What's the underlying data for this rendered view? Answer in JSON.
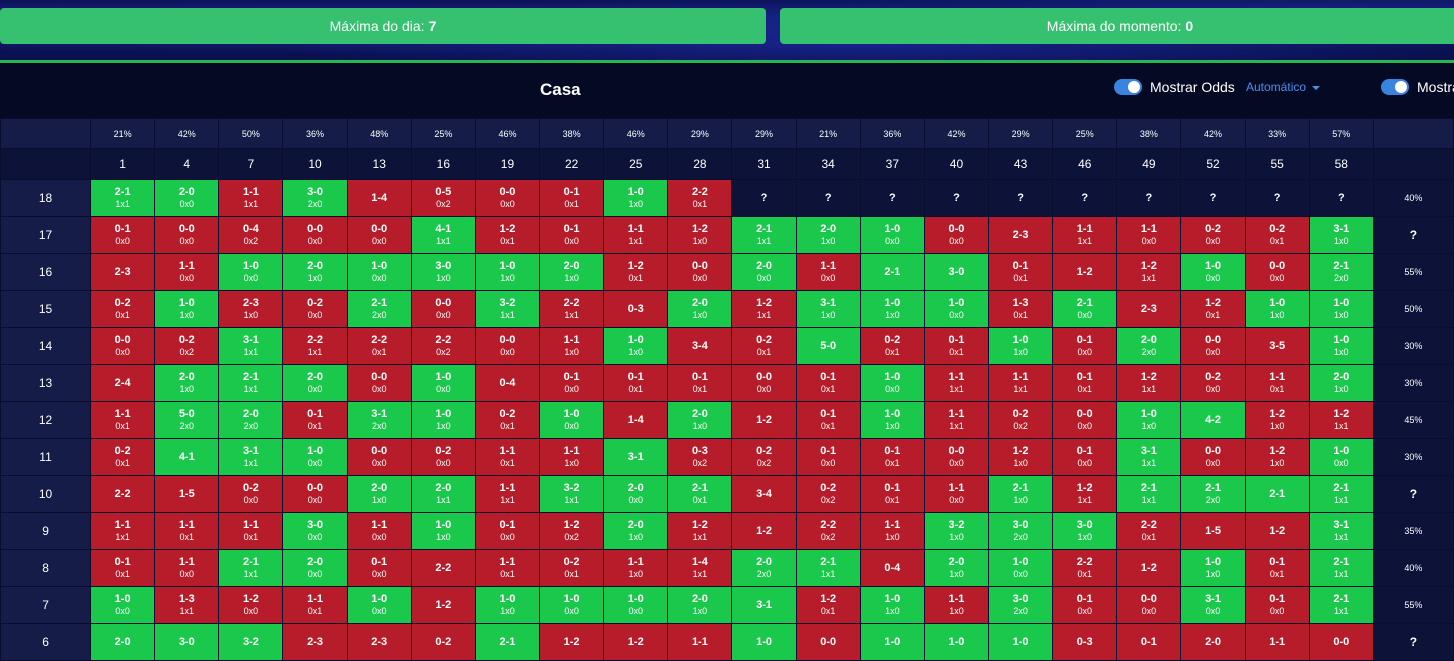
{
  "stats": {
    "day_max_label": "Máxima do dia:",
    "day_max_value": "7",
    "moment_max_label": "Máxima do momento:",
    "moment_max_value": "0"
  },
  "header": {
    "title": "Casa",
    "toggle_label": "Mostrar Odds",
    "toggle_label_cut": "Mostrar",
    "mode": "Automático"
  },
  "colors": {
    "green": "#1ac84c",
    "red": "#b71c2a",
    "stat_green": "#35c16f",
    "accent": "#3a84e0"
  },
  "percents": [
    "21%",
    "42%",
    "50%",
    "36%",
    "48%",
    "25%",
    "46%",
    "38%",
    "46%",
    "29%",
    "29%",
    "21%",
    "36%",
    "42%",
    "29%",
    "25%",
    "38%",
    "42%",
    "33%",
    "57%"
  ],
  "minutes": [
    "1",
    "4",
    "7",
    "10",
    "13",
    "16",
    "19",
    "22",
    "25",
    "28",
    "31",
    "34",
    "37",
    "40",
    "43",
    "46",
    "49",
    "52",
    "55",
    "58"
  ],
  "rows": [
    {
      "hour": "18",
      "rate": "40%",
      "cells": [
        [
          "2-1",
          "1x1",
          "g"
        ],
        [
          "2-0",
          "0x0",
          "g"
        ],
        [
          "1-1",
          "1x1",
          "r"
        ],
        [
          "3-0",
          "2x0",
          "g"
        ],
        [
          "1-4",
          "",
          "r"
        ],
        [
          "0-5",
          "0x2",
          "r"
        ],
        [
          "0-0",
          "0x0",
          "r"
        ],
        [
          "0-1",
          "0x1",
          "r"
        ],
        [
          "1-0",
          "1x0",
          "g"
        ],
        [
          "2-2",
          "0x1",
          "r"
        ],
        [
          "?",
          "",
          "u"
        ],
        [
          "?",
          "",
          "u"
        ],
        [
          "?",
          "",
          "u"
        ],
        [
          "?",
          "",
          "u"
        ],
        [
          "?",
          "",
          "u"
        ],
        [
          "?",
          "",
          "u"
        ],
        [
          "?",
          "",
          "u"
        ],
        [
          "?",
          "",
          "u"
        ],
        [
          "?",
          "",
          "u"
        ],
        [
          "?",
          "",
          "u"
        ]
      ]
    },
    {
      "hour": "17",
      "rate": "?",
      "cells": [
        [
          "0-1",
          "0x0",
          "r"
        ],
        [
          "0-0",
          "0x0",
          "r"
        ],
        [
          "0-4",
          "0x2",
          "r"
        ],
        [
          "0-0",
          "0x0",
          "r"
        ],
        [
          "0-0",
          "0x0",
          "r"
        ],
        [
          "4-1",
          "1x1",
          "g"
        ],
        [
          "1-2",
          "0x1",
          "r"
        ],
        [
          "0-1",
          "0x0",
          "r"
        ],
        [
          "1-1",
          "1x1",
          "r"
        ],
        [
          "1-2",
          "1x0",
          "r"
        ],
        [
          "2-1",
          "1x1",
          "g"
        ],
        [
          "2-0",
          "1x0",
          "g"
        ],
        [
          "1-0",
          "0x0",
          "g"
        ],
        [
          "0-0",
          "0x0",
          "r"
        ],
        [
          "2-3",
          "",
          "r"
        ],
        [
          "1-1",
          "1x1",
          "r"
        ],
        [
          "1-1",
          "0x0",
          "r"
        ],
        [
          "0-2",
          "0x0",
          "r"
        ],
        [
          "0-2",
          "0x1",
          "r"
        ],
        [
          "3-1",
          "1x0",
          "g"
        ]
      ]
    },
    {
      "hour": "16",
      "rate": "55%",
      "cells": [
        [
          "2-3",
          "",
          "r"
        ],
        [
          "1-1",
          "0x0",
          "r"
        ],
        [
          "1-0",
          "0x0",
          "g"
        ],
        [
          "2-0",
          "1x0",
          "g"
        ],
        [
          "1-0",
          "0x0",
          "g"
        ],
        [
          "3-0",
          "1x0",
          "g"
        ],
        [
          "1-0",
          "1x0",
          "g"
        ],
        [
          "2-0",
          "1x0",
          "g"
        ],
        [
          "1-2",
          "0x1",
          "r"
        ],
        [
          "0-0",
          "0x0",
          "r"
        ],
        [
          "2-0",
          "0x0",
          "g"
        ],
        [
          "1-1",
          "0x0",
          "r"
        ],
        [
          "2-1",
          "",
          "g"
        ],
        [
          "3-0",
          "",
          "g"
        ],
        [
          "0-1",
          "0x1",
          "r"
        ],
        [
          "1-2",
          "",
          "r"
        ],
        [
          "1-2",
          "1x1",
          "r"
        ],
        [
          "1-0",
          "0x0",
          "g"
        ],
        [
          "0-0",
          "0x0",
          "r"
        ],
        [
          "2-1",
          "2x0",
          "g"
        ]
      ]
    },
    {
      "hour": "15",
      "rate": "50%",
      "cells": [
        [
          "0-2",
          "0x1",
          "r"
        ],
        [
          "1-0",
          "1x0",
          "g"
        ],
        [
          "2-3",
          "1x0",
          "r"
        ],
        [
          "0-2",
          "0x0",
          "r"
        ],
        [
          "2-1",
          "2x0",
          "g"
        ],
        [
          "0-0",
          "0x0",
          "r"
        ],
        [
          "3-2",
          "1x1",
          "g"
        ],
        [
          "2-2",
          "1x1",
          "r"
        ],
        [
          "0-3",
          "",
          "r"
        ],
        [
          "2-0",
          "1x0",
          "g"
        ],
        [
          "1-2",
          "1x1",
          "r"
        ],
        [
          "3-1",
          "1x0",
          "g"
        ],
        [
          "1-0",
          "1x0",
          "g"
        ],
        [
          "1-0",
          "0x0",
          "g"
        ],
        [
          "1-3",
          "0x1",
          "r"
        ],
        [
          "2-1",
          "0x0",
          "g"
        ],
        [
          "2-3",
          "",
          "r"
        ],
        [
          "1-2",
          "0x1",
          "r"
        ],
        [
          "1-0",
          "1x0",
          "g"
        ],
        [
          "1-0",
          "1x0",
          "g"
        ]
      ]
    },
    {
      "hour": "14",
      "rate": "30%",
      "cells": [
        [
          "0-0",
          "0x0",
          "r"
        ],
        [
          "0-2",
          "0x2",
          "r"
        ],
        [
          "3-1",
          "1x1",
          "g"
        ],
        [
          "2-2",
          "1x1",
          "r"
        ],
        [
          "2-2",
          "0x1",
          "r"
        ],
        [
          "2-2",
          "0x2",
          "r"
        ],
        [
          "0-0",
          "0x0",
          "r"
        ],
        [
          "1-1",
          "1x0",
          "r"
        ],
        [
          "1-0",
          "1x0",
          "g"
        ],
        [
          "3-4",
          "",
          "r"
        ],
        [
          "0-2",
          "0x1",
          "r"
        ],
        [
          "5-0",
          "",
          "g"
        ],
        [
          "0-2",
          "0x1",
          "r"
        ],
        [
          "0-1",
          "0x1",
          "r"
        ],
        [
          "1-0",
          "1x0",
          "g"
        ],
        [
          "0-1",
          "0x0",
          "r"
        ],
        [
          "2-0",
          "2x0",
          "g"
        ],
        [
          "0-0",
          "0x0",
          "r"
        ],
        [
          "3-5",
          "",
          "r"
        ],
        [
          "1-0",
          "1x0",
          "g"
        ]
      ]
    },
    {
      "hour": "13",
      "rate": "30%",
      "cells": [
        [
          "2-4",
          "",
          "r"
        ],
        [
          "2-0",
          "1x0",
          "g"
        ],
        [
          "2-1",
          "1x1",
          "g"
        ],
        [
          "2-0",
          "0x0",
          "g"
        ],
        [
          "0-0",
          "0x0",
          "r"
        ],
        [
          "1-0",
          "0x0",
          "g"
        ],
        [
          "0-4",
          "",
          "r"
        ],
        [
          "0-1",
          "0x0",
          "r"
        ],
        [
          "0-1",
          "0x1",
          "r"
        ],
        [
          "0-1",
          "0x1",
          "r"
        ],
        [
          "0-0",
          "0x0",
          "r"
        ],
        [
          "0-1",
          "0x1",
          "r"
        ],
        [
          "1-0",
          "0x0",
          "g"
        ],
        [
          "1-1",
          "1x1",
          "r"
        ],
        [
          "1-1",
          "1x1",
          "r"
        ],
        [
          "0-1",
          "0x1",
          "r"
        ],
        [
          "1-2",
          "1x1",
          "r"
        ],
        [
          "0-2",
          "0x0",
          "r"
        ],
        [
          "1-1",
          "0x1",
          "r"
        ],
        [
          "2-0",
          "1x0",
          "g"
        ]
      ]
    },
    {
      "hour": "12",
      "rate": "45%",
      "cells": [
        [
          "1-1",
          "0x1",
          "r"
        ],
        [
          "5-0",
          "2x0",
          "g"
        ],
        [
          "2-0",
          "2x0",
          "g"
        ],
        [
          "0-1",
          "0x1",
          "r"
        ],
        [
          "3-1",
          "2x0",
          "g"
        ],
        [
          "1-0",
          "1x0",
          "g"
        ],
        [
          "0-2",
          "0x1",
          "r"
        ],
        [
          "1-0",
          "0x0",
          "g"
        ],
        [
          "1-4",
          "",
          "r"
        ],
        [
          "2-0",
          "1x0",
          "g"
        ],
        [
          "1-2",
          "",
          "r"
        ],
        [
          "0-1",
          "0x1",
          "r"
        ],
        [
          "1-0",
          "1x0",
          "g"
        ],
        [
          "1-1",
          "1x1",
          "r"
        ],
        [
          "0-2",
          "0x2",
          "r"
        ],
        [
          "0-0",
          "0x0",
          "r"
        ],
        [
          "1-0",
          "1x0",
          "g"
        ],
        [
          "4-2",
          "",
          "g"
        ],
        [
          "1-2",
          "1x0",
          "r"
        ],
        [
          "1-2",
          "1x1",
          "r"
        ]
      ]
    },
    {
      "hour": "11",
      "rate": "30%",
      "cells": [
        [
          "0-2",
          "0x1",
          "r"
        ],
        [
          "4-1",
          "",
          "g"
        ],
        [
          "3-1",
          "1x1",
          "g"
        ],
        [
          "1-0",
          "0x0",
          "g"
        ],
        [
          "0-0",
          "0x0",
          "r"
        ],
        [
          "0-2",
          "0x0",
          "r"
        ],
        [
          "1-1",
          "0x1",
          "r"
        ],
        [
          "1-1",
          "1x0",
          "r"
        ],
        [
          "3-1",
          "",
          "g"
        ],
        [
          "0-3",
          "0x2",
          "r"
        ],
        [
          "0-2",
          "0x2",
          "r"
        ],
        [
          "0-1",
          "0x0",
          "r"
        ],
        [
          "0-1",
          "0x1",
          "r"
        ],
        [
          "0-0",
          "0x0",
          "r"
        ],
        [
          "1-2",
          "1x0",
          "r"
        ],
        [
          "0-1",
          "0x0",
          "r"
        ],
        [
          "3-1",
          "1x1",
          "g"
        ],
        [
          "0-0",
          "0x0",
          "r"
        ],
        [
          "1-2",
          "1x0",
          "r"
        ],
        [
          "1-0",
          "0x0",
          "g"
        ]
      ]
    },
    {
      "hour": "10",
      "rate": "?",
      "cells": [
        [
          "2-2",
          "",
          "r"
        ],
        [
          "1-5",
          "",
          "r"
        ],
        [
          "0-2",
          "0x0",
          "r"
        ],
        [
          "0-0",
          "0x0",
          "r"
        ],
        [
          "2-0",
          "1x0",
          "g"
        ],
        [
          "2-0",
          "1x1",
          "g"
        ],
        [
          "1-1",
          "1x1",
          "r"
        ],
        [
          "3-2",
          "1x1",
          "g"
        ],
        [
          "2-0",
          "0x0",
          "g"
        ],
        [
          "2-1",
          "0x1",
          "g"
        ],
        [
          "3-4",
          "",
          "r"
        ],
        [
          "0-2",
          "0x2",
          "r"
        ],
        [
          "0-1",
          "0x1",
          "r"
        ],
        [
          "1-1",
          "0x0",
          "r"
        ],
        [
          "2-1",
          "1x0",
          "g"
        ],
        [
          "1-2",
          "1x1",
          "r"
        ],
        [
          "2-1",
          "1x1",
          "g"
        ],
        [
          "2-1",
          "2x0",
          "g"
        ],
        [
          "2-1",
          "",
          "g"
        ],
        [
          "2-1",
          "1x1",
          "g"
        ]
      ]
    },
    {
      "hour": "9",
      "rate": "35%",
      "cells": [
        [
          "1-1",
          "1x1",
          "r"
        ],
        [
          "1-1",
          "0x1",
          "r"
        ],
        [
          "1-1",
          "0x1",
          "r"
        ],
        [
          "3-0",
          "0x0",
          "g"
        ],
        [
          "1-1",
          "0x0",
          "r"
        ],
        [
          "1-0",
          "1x0",
          "g"
        ],
        [
          "0-1",
          "0x0",
          "r"
        ],
        [
          "1-2",
          "0x2",
          "r"
        ],
        [
          "2-0",
          "1x0",
          "g"
        ],
        [
          "1-2",
          "1x1",
          "r"
        ],
        [
          "1-2",
          "",
          "r"
        ],
        [
          "2-2",
          "0x2",
          "r"
        ],
        [
          "1-1",
          "1x0",
          "r"
        ],
        [
          "3-2",
          "1x0",
          "g"
        ],
        [
          "3-0",
          "2x0",
          "g"
        ],
        [
          "3-0",
          "1x0",
          "g"
        ],
        [
          "2-2",
          "0x1",
          "r"
        ],
        [
          "1-5",
          "",
          "r"
        ],
        [
          "1-2",
          "",
          "r"
        ],
        [
          "3-1",
          "1x1",
          "g"
        ]
      ]
    },
    {
      "hour": "8",
      "rate": "40%",
      "cells": [
        [
          "0-1",
          "0x1",
          "r"
        ],
        [
          "1-1",
          "0x0",
          "r"
        ],
        [
          "2-1",
          "1x1",
          "g"
        ],
        [
          "2-0",
          "0x0",
          "g"
        ],
        [
          "0-1",
          "0x0",
          "r"
        ],
        [
          "2-2",
          "",
          "r"
        ],
        [
          "1-1",
          "0x1",
          "r"
        ],
        [
          "0-2",
          "0x1",
          "r"
        ],
        [
          "1-1",
          "1x0",
          "r"
        ],
        [
          "1-4",
          "1x1",
          "r"
        ],
        [
          "2-0",
          "2x0",
          "g"
        ],
        [
          "2-1",
          "1x1",
          "g"
        ],
        [
          "0-4",
          "",
          "r"
        ],
        [
          "2-0",
          "1x0",
          "g"
        ],
        [
          "1-0",
          "0x0",
          "g"
        ],
        [
          "2-2",
          "0x1",
          "r"
        ],
        [
          "1-2",
          "",
          "r"
        ],
        [
          "1-0",
          "1x0",
          "g"
        ],
        [
          "0-1",
          "0x1",
          "r"
        ],
        [
          "2-1",
          "1x1",
          "g"
        ]
      ]
    },
    {
      "hour": "7",
      "rate": "55%",
      "cells": [
        [
          "1-0",
          "0x0",
          "g"
        ],
        [
          "1-3",
          "1x1",
          "r"
        ],
        [
          "1-2",
          "0x0",
          "r"
        ],
        [
          "1-1",
          "0x1",
          "r"
        ],
        [
          "1-0",
          "0x0",
          "g"
        ],
        [
          "1-2",
          "",
          "r"
        ],
        [
          "1-0",
          "1x0",
          "g"
        ],
        [
          "1-0",
          "0x0",
          "g"
        ],
        [
          "1-0",
          "0x0",
          "g"
        ],
        [
          "2-0",
          "1x0",
          "g"
        ],
        [
          "3-1",
          "",
          "g"
        ],
        [
          "1-2",
          "0x1",
          "r"
        ],
        [
          "1-0",
          "1x0",
          "g"
        ],
        [
          "1-1",
          "1x0",
          "r"
        ],
        [
          "3-0",
          "2x0",
          "g"
        ],
        [
          "0-1",
          "0x0",
          "r"
        ],
        [
          "0-0",
          "0x0",
          "r"
        ],
        [
          "3-1",
          "0x0",
          "g"
        ],
        [
          "0-1",
          "0x0",
          "r"
        ],
        [
          "2-1",
          "1x1",
          "g"
        ]
      ]
    },
    {
      "hour": "6",
      "rate": "?",
      "cells": [
        [
          "2-0",
          "",
          "g"
        ],
        [
          "3-0",
          "",
          "g"
        ],
        [
          "3-2",
          "",
          "g"
        ],
        [
          "2-3",
          "",
          "r"
        ],
        [
          "2-3",
          "",
          "r"
        ],
        [
          "0-2",
          "",
          "r"
        ],
        [
          "2-1",
          "",
          "g"
        ],
        [
          "1-2",
          "",
          "r"
        ],
        [
          "1-2",
          "",
          "r"
        ],
        [
          "1-1",
          "",
          "r"
        ],
        [
          "1-0",
          "",
          "g"
        ],
        [
          "0-0",
          "",
          "r"
        ],
        [
          "1-0",
          "",
          "g"
        ],
        [
          "1-0",
          "",
          "g"
        ],
        [
          "1-0",
          "",
          "g"
        ],
        [
          "0-3",
          "",
          "r"
        ],
        [
          "0-1",
          "",
          "r"
        ],
        [
          "2-0",
          "",
          "r"
        ],
        [
          "1-1",
          "",
          "r"
        ],
        [
          "0-0",
          "",
          "r"
        ]
      ]
    }
  ]
}
